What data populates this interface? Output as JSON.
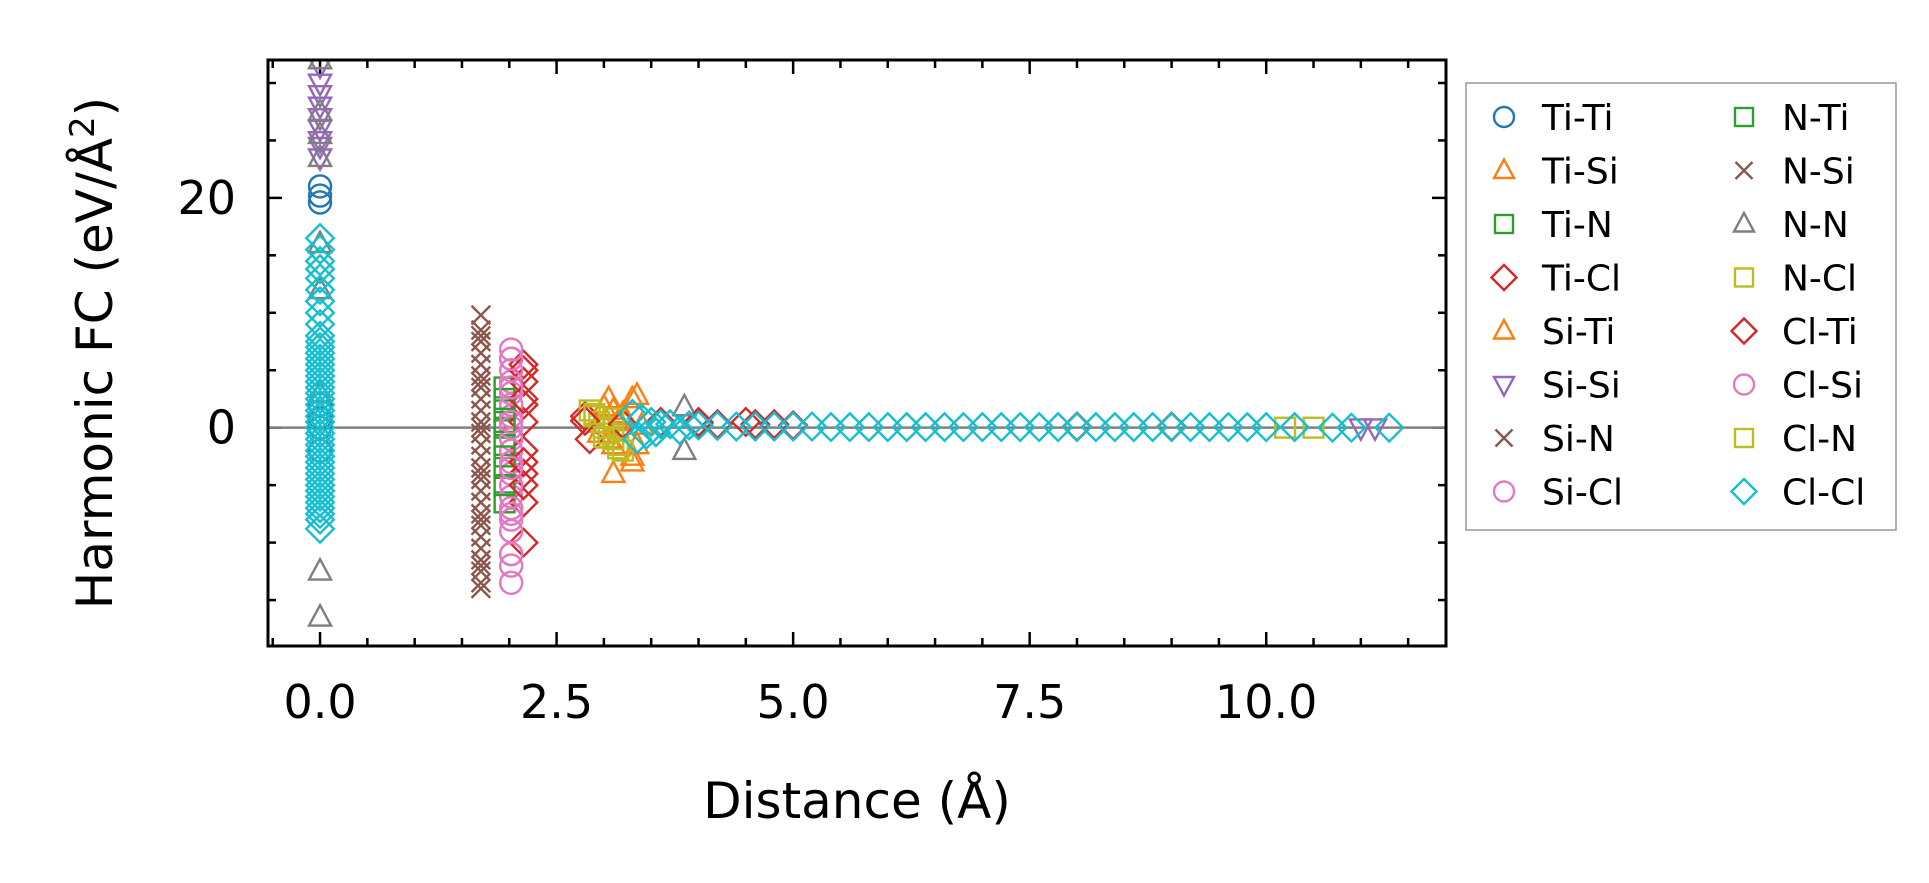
{
  "chart_data": {
    "type": "scatter",
    "title": "",
    "xlabel": "Distance (Å)",
    "ylabel_main": "Harmonic FC (eV/Å",
    "ylabel_sup": "2",
    "ylabel_close": ")",
    "xlim": [
      -0.55,
      11.9
    ],
    "ylim": [
      -19,
      32
    ],
    "xticks": [
      0.0,
      2.5,
      5.0,
      7.5,
      10.0
    ],
    "xtick_labels": [
      "0.0",
      "2.5",
      "5.0",
      "7.5",
      "10.0"
    ],
    "yticks": [
      0,
      20
    ],
    "ytick_labels": [
      "0",
      "20"
    ],
    "zero_line": 0,
    "legend_position": "outside-right",
    "series": [
      {
        "name": "Ti-Ti",
        "marker": "circle",
        "color": "#1f77b4",
        "x": [
          0,
          0,
          0,
          0,
          0,
          0,
          0
        ],
        "y": [
          21,
          20.2,
          19.6,
          2,
          0,
          -2,
          0.8
        ]
      },
      {
        "name": "Ti-Si",
        "marker": "triangle-up",
        "color": "#ff7f0e",
        "x": [
          3.05,
          3.1,
          3.15,
          3.3,
          3.3,
          3.05,
          3.2,
          3.0,
          2.95,
          3.4,
          3.1,
          3.35
        ],
        "y": [
          2.5,
          -4,
          0.5,
          2.5,
          -3,
          -1,
          1.2,
          0.3,
          -0.5,
          0.2,
          1.5,
          -1.5
        ]
      },
      {
        "name": "Ti-N",
        "marker": "square",
        "color": "#2ca02c",
        "x": [
          1.95,
          1.95,
          1.95,
          1.95,
          1.95,
          1.95
        ],
        "y": [
          3.5,
          1.5,
          0,
          -1.5,
          -3.5,
          -6.5
        ]
      },
      {
        "name": "Ti-Cl",
        "marker": "diamond",
        "color": "#d62728",
        "x": [
          2.15,
          2.15,
          2.15,
          2.15,
          2.15,
          2.15,
          2.15,
          2.15,
          2.8,
          2.85,
          3.6,
          4.0,
          4.2,
          4.5,
          4.8,
          5.0,
          8.0,
          9.0
        ],
        "y": [
          5.5,
          4,
          2,
          0.5,
          -2,
          -4,
          -6.5,
          -10,
          1,
          -1,
          0.5,
          0.5,
          0.3,
          0.5,
          0.3,
          0.2,
          0.1,
          0.1
        ]
      },
      {
        "name": "Si-Ti",
        "marker": "triangle-up",
        "color": "#ff7f0e",
        "x": [
          3.0,
          3.1,
          3.2,
          3.3,
          3.35
        ],
        "y": [
          1.8,
          -1.5,
          1,
          -2.5,
          2.8
        ]
      },
      {
        "name": "Si-Si",
        "marker": "triangle-down",
        "color": "#9467bd",
        "x": [
          0,
          0,
          0,
          0,
          0,
          0,
          0,
          0,
          0,
          11.0,
          11.15
        ],
        "y": [
          31.5,
          30,
          29,
          28,
          27,
          26,
          25,
          24.5,
          23.5,
          0,
          0
        ]
      },
      {
        "name": "Si-N",
        "marker": "cross",
        "color": "#8c564b",
        "x": [
          1.7,
          1.7,
          1.7,
          1.7,
          1.7,
          1.7,
          1.7,
          1.7,
          1.7,
          1.7,
          1.7,
          1.7,
          1.7,
          1.7,
          1.7,
          1.7,
          1.7,
          1.7,
          1.7,
          1.7,
          1.7,
          1.7,
          1.7,
          1.7,
          1.7
        ],
        "y": [
          9.8,
          8.5,
          7.5,
          6.5,
          5.5,
          4.5,
          3.5,
          2.5,
          1.5,
          0.5,
          -0.5,
          -1.5,
          -2.5,
          -3.5,
          -4.5,
          -5.5,
          -6.5,
          -7.5,
          -8.5,
          -9.5,
          -10.5,
          -11.5,
          -12.5,
          -13.5,
          -14
        ]
      },
      {
        "name": "Si-Cl",
        "marker": "circle",
        "color": "#e377c2",
        "x": [
          2.02,
          2.02,
          2.02,
          2.02,
          2.02,
          2.02,
          2.02,
          2.02,
          2.02,
          2.02,
          2.02,
          2.02,
          2.02,
          2.02,
          2.02,
          2.02,
          2.02,
          2.02,
          2.02,
          2.02
        ],
        "y": [
          6.8,
          6,
          5,
          4,
          3,
          2,
          1,
          0,
          -1,
          -2,
          -3,
          -4,
          -5,
          -6,
          -7,
          -8,
          -9,
          -11,
          -12,
          -13.5
        ]
      },
      {
        "name": "N-Ti",
        "marker": "square",
        "color": "#2ca02c",
        "x": [
          1.95,
          1.95,
          1.95,
          1.95
        ],
        "y": [
          2.5,
          0.5,
          -2.5,
          -5
        ]
      },
      {
        "name": "N-Si",
        "marker": "cross",
        "color": "#8c564b",
        "x": [
          1.7,
          1.7,
          1.7,
          1.7,
          1.7,
          1.7
        ],
        "y": [
          8,
          4,
          0,
          -4,
          -8,
          -12
        ]
      },
      {
        "name": "N-N",
        "marker": "triangle-up",
        "color": "#7f7f7f",
        "x": [
          0,
          0,
          0,
          0,
          0,
          0,
          0,
          0,
          0,
          0,
          3.85,
          3.85
        ],
        "y": [
          33,
          32,
          27.5,
          25.5,
          23.5,
          16,
          12,
          3,
          -12.5,
          -16.5,
          1.8,
          -2
        ]
      },
      {
        "name": "N-Cl",
        "marker": "square",
        "color": "#bcbd22",
        "x": [
          2.85,
          2.9,
          2.95,
          3.0,
          3.05,
          3.1,
          3.15,
          3.2,
          10.2,
          10.5
        ],
        "y": [
          1.5,
          1,
          0.5,
          0,
          -0.5,
          -1,
          -1.5,
          -2,
          0,
          0
        ]
      },
      {
        "name": "Cl-Ti",
        "marker": "diamond",
        "color": "#d62728",
        "x": [
          2.15,
          2.15,
          2.15,
          2.15,
          2.8,
          3.2,
          4.0,
          4.6
        ],
        "y": [
          5,
          2.5,
          -3,
          -5,
          0.6,
          0.3,
          0.4,
          0.3
        ]
      },
      {
        "name": "Cl-Si",
        "marker": "circle",
        "color": "#e377c2",
        "x": [
          2.02,
          2.02,
          2.02,
          2.02,
          2.02,
          2.02
        ],
        "y": [
          6,
          3.5,
          0.5,
          -3.5,
          -7.5,
          -11
        ]
      },
      {
        "name": "Cl-N",
        "marker": "square",
        "color": "#bcbd22",
        "x": [
          2.9,
          3.0,
          3.1,
          3.15
        ],
        "y": [
          1.2,
          -0.8,
          0.8,
          -1.8
        ]
      },
      {
        "name": "Cl-Cl",
        "marker": "diamond",
        "color": "#17becf",
        "x": [
          0,
          0,
          0,
          0,
          0,
          0,
          0,
          0,
          0,
          0,
          0,
          0,
          0,
          0,
          0,
          0,
          0,
          0,
          0,
          0,
          0,
          0,
          0,
          0,
          0,
          0,
          0,
          0,
          0,
          0,
          0,
          0,
          0,
          0,
          0,
          0,
          0,
          0,
          0,
          0,
          0,
          0,
          0,
          3.3,
          3.35,
          3.4,
          3.45,
          3.5,
          3.55,
          3.6,
          3.7,
          3.8,
          3.9,
          4.0,
          4.2,
          4.4,
          4.6,
          4.8,
          5.0,
          5.2,
          5.4,
          5.6,
          5.8,
          6.0,
          6.2,
          6.4,
          6.6,
          6.8,
          7.0,
          7.2,
          7.4,
          7.6,
          7.8,
          8.0,
          8.2,
          8.4,
          8.6,
          8.8,
          9.0,
          9.2,
          9.4,
          9.6,
          9.8,
          10.0,
          10.3,
          10.7,
          10.9,
          11.3
        ],
        "y": [
          16.5,
          15.5,
          14.5,
          13.8,
          13,
          12,
          11,
          10,
          9,
          8,
          7.5,
          7,
          6.5,
          6,
          5.5,
          5,
          4.5,
          4,
          3.5,
          3,
          2.5,
          2,
          1.5,
          1,
          0.5,
          0,
          -0.5,
          -1,
          -1.5,
          -2,
          -2.5,
          -3,
          -3.5,
          -4,
          -4.5,
          -5,
          -5.5,
          -6,
          -6.5,
          -7,
          -7.5,
          -8,
          -8.8,
          1.2,
          -1,
          0.8,
          -0.6,
          0.5,
          -0.4,
          0.3,
          0.3,
          -0.2,
          0.2,
          0.2,
          0.15,
          0.1,
          0.1,
          0.1,
          0.1,
          0.1,
          0.05,
          0.05,
          0.05,
          0.05,
          0.05,
          0.05,
          0.05,
          0.05,
          0.05,
          0.05,
          0.05,
          0.05,
          0.05,
          0.05,
          0.05,
          0.05,
          0.05,
          0.05,
          0.05,
          0.05,
          0.05,
          0.05,
          0.05,
          0.05,
          0.05,
          0,
          0,
          0
        ]
      }
    ]
  }
}
